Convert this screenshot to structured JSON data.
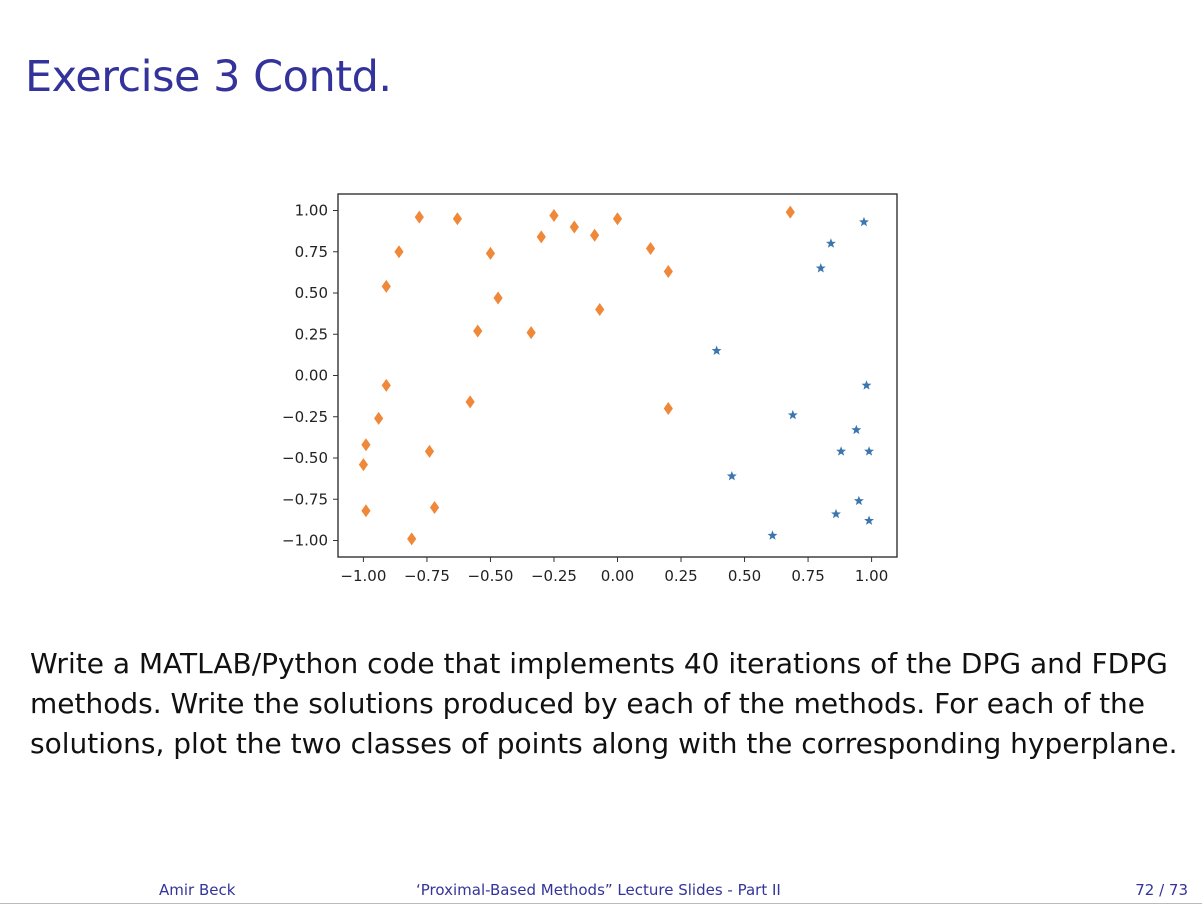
{
  "slide": {
    "title": "Exercise 3 Contd.",
    "body": "Write a MATLAB/Python code that implements 40 iterations of the DPG and FDPG methods. Write the solutions produced by each of the methods. For each of the solutions, plot the two classes of points along with the corresponding hyperplane."
  },
  "footer": {
    "author": "Amir Beck",
    "course": "‘Proximal-Based Methods” Lecture Slides - Part II",
    "page": "72 / 73"
  },
  "chart_data": {
    "type": "scatter",
    "title": "",
    "xlabel": "",
    "ylabel": "",
    "xlim": [
      -1.1,
      1.1
    ],
    "ylim": [
      -1.1,
      1.1
    ],
    "x_ticks": [
      "−1.00",
      "−0.75",
      "−0.50",
      "−0.25",
      "0.00",
      "0.25",
      "0.50",
      "0.75",
      "1.00"
    ],
    "x_tick_values": [
      -1.0,
      -0.75,
      -0.5,
      -0.25,
      0.0,
      0.25,
      0.5,
      0.75,
      1.0
    ],
    "y_ticks": [
      "1.00",
      "0.75",
      "0.50",
      "0.25",
      "0.00",
      "−0.25",
      "−0.50",
      "−0.75",
      "−1.00"
    ],
    "y_tick_values": [
      1.0,
      0.75,
      0.5,
      0.25,
      0.0,
      -0.25,
      -0.5,
      -0.75,
      -1.0
    ],
    "grid": false,
    "series": [
      {
        "marker": "diamond",
        "color": "#f0883a",
        "points": [
          [
            -1.0,
            -0.54
          ],
          [
            -0.99,
            -0.42
          ],
          [
            -0.99,
            -0.82
          ],
          [
            -0.94,
            -0.26
          ],
          [
            -0.91,
            -0.06
          ],
          [
            -0.91,
            0.54
          ],
          [
            -0.86,
            0.75
          ],
          [
            -0.81,
            -0.99
          ],
          [
            -0.78,
            0.96
          ],
          [
            -0.74,
            -0.46
          ],
          [
            -0.72,
            -0.8
          ],
          [
            -0.63,
            0.95
          ],
          [
            -0.58,
            -0.16
          ],
          [
            -0.55,
            0.27
          ],
          [
            -0.5,
            0.74
          ],
          [
            -0.47,
            0.47
          ],
          [
            -0.34,
            0.26
          ],
          [
            -0.3,
            0.84
          ],
          [
            -0.25,
            0.97
          ],
          [
            -0.17,
            0.9
          ],
          [
            -0.09,
            0.85
          ],
          [
            -0.07,
            0.4
          ],
          [
            0.0,
            0.95
          ],
          [
            0.13,
            0.77
          ],
          [
            0.2,
            0.63
          ],
          [
            0.2,
            -0.2
          ],
          [
            0.68,
            0.99
          ]
        ]
      },
      {
        "marker": "star",
        "color": "#3b76af",
        "points": [
          [
            0.39,
            0.15
          ],
          [
            0.45,
            -0.61
          ],
          [
            0.61,
            -0.97
          ],
          [
            0.69,
            -0.24
          ],
          [
            0.8,
            0.65
          ],
          [
            0.84,
            0.8
          ],
          [
            0.86,
            -0.84
          ],
          [
            0.88,
            -0.46
          ],
          [
            0.94,
            -0.33
          ],
          [
            0.95,
            -0.76
          ],
          [
            0.97,
            0.93
          ],
          [
            0.98,
            -0.06
          ],
          [
            0.99,
            -0.46
          ],
          [
            0.99,
            -0.88
          ]
        ]
      }
    ]
  }
}
